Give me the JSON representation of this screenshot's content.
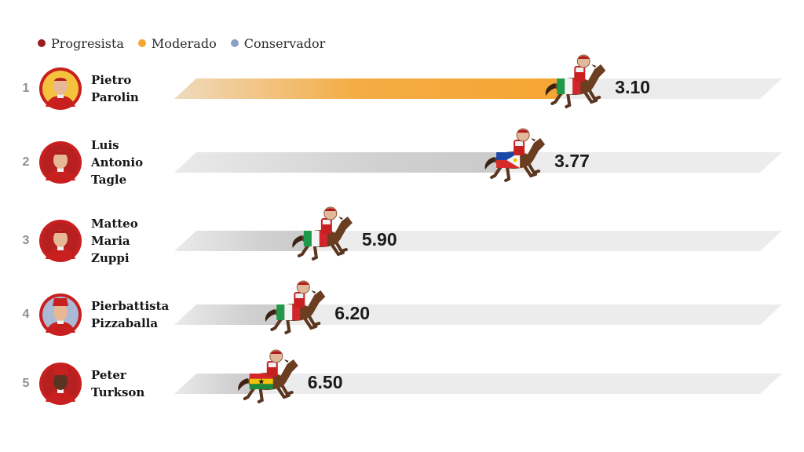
{
  "legend": [
    {
      "label": "Progresista",
      "color": "#9c1b1b"
    },
    {
      "label": "Moderado",
      "color": "#f5a531"
    },
    {
      "label": "Conservador",
      "color": "#8aa0c9"
    }
  ],
  "colors": {
    "track": "#ececec",
    "leader_fill": "#f5a531",
    "bar_fill": "#c9c9c9",
    "avatar_ring": "#c8201f"
  },
  "chart_data": {
    "type": "bar",
    "orientation": "horizontal",
    "title": "",
    "xlabel": "",
    "ylabel": "",
    "xlim": [
      3.0,
      10.0
    ],
    "axis_direction": "reversed",
    "categories": [
      "Pietro Parolin",
      "Luis Antonio Tagle",
      "Matteo Maria Zuppi",
      "Pierbattista Pizzaballa",
      "Peter Turkson"
    ],
    "values": [
      3.1,
      3.77,
      5.9,
      6.2,
      6.5
    ],
    "rows": [
      {
        "rank": "1",
        "name_lines": [
          "Pietro",
          "Parolin"
        ],
        "value": 3.1,
        "value_label": "3.10",
        "flag": "italy-flag-icon",
        "highlight": true,
        "leaning": "Moderado"
      },
      {
        "rank": "2",
        "name_lines": [
          "Luis",
          "Antonio",
          "Tagle"
        ],
        "value": 3.77,
        "value_label": "3.77",
        "flag": "philippines-flag-icon",
        "highlight": false
      },
      {
        "rank": "3",
        "name_lines": [
          "Matteo",
          "Maria",
          "Zuppi"
        ],
        "value": 5.9,
        "value_label": "5.90",
        "flag": "italy-flag-icon",
        "highlight": false
      },
      {
        "rank": "4",
        "name_lines": [
          "Pierbattista",
          "Pizzaballa"
        ],
        "value": 6.2,
        "value_label": "6.20",
        "flag": "italy-flag-icon",
        "highlight": false
      },
      {
        "rank": "5",
        "name_lines": [
          "Peter",
          "Turkson"
        ],
        "value": 6.5,
        "value_label": "6.50",
        "flag": "ghana-flag-icon",
        "highlight": false
      }
    ]
  }
}
